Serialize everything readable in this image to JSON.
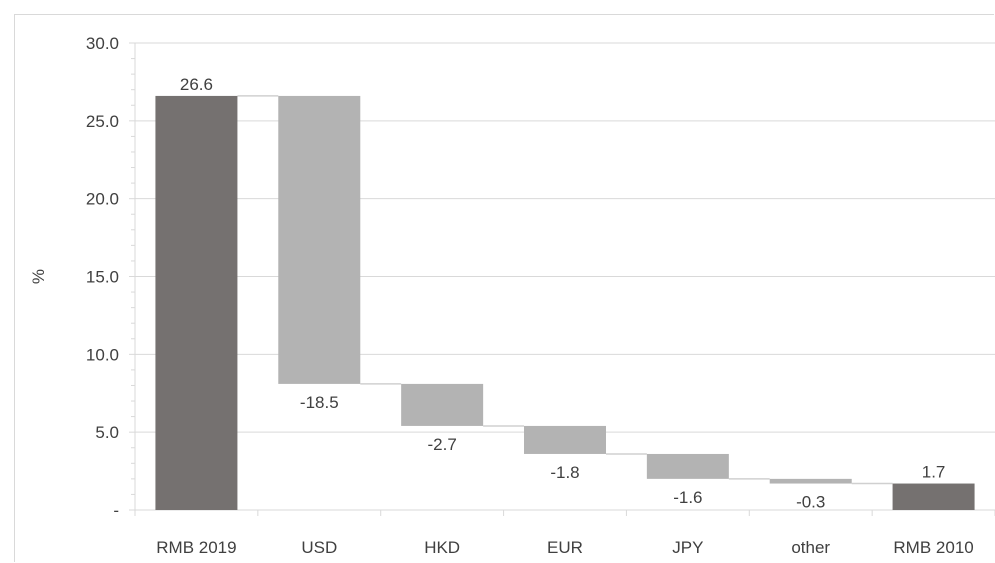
{
  "chart_data": {
    "type": "bar",
    "subtype": "waterfall",
    "title": "",
    "xlabel": "",
    "ylabel": "%",
    "ylim": [
      0,
      30
    ],
    "y_ticks": [
      0,
      5,
      10,
      15,
      20,
      25,
      30
    ],
    "y_tick_labels": [
      "-",
      "5.0",
      "10.0",
      "15.0",
      "20.0",
      "25.0",
      "30.0"
    ],
    "categories": [
      "RMB 2019",
      "USD",
      "HKD",
      "EUR",
      "JPY",
      "other",
      "RMB 2010"
    ],
    "values": [
      26.6,
      -18.5,
      -2.7,
      -1.8,
      -1.6,
      -0.3,
      1.7
    ],
    "value_labels": [
      "26.6",
      "-18.5",
      "-2.7",
      "-1.8",
      "-1.6",
      "-0.3",
      "1.7"
    ],
    "bar_kinds": [
      "total",
      "delta",
      "delta",
      "delta",
      "delta",
      "delta",
      "total"
    ],
    "grid": true,
    "legend": "none",
    "colors": {
      "total": "#757170",
      "delta": "#b3b3b3",
      "grid": "#d9d9d9",
      "connector": "#d0d0d0",
      "text": "#404040"
    }
  }
}
